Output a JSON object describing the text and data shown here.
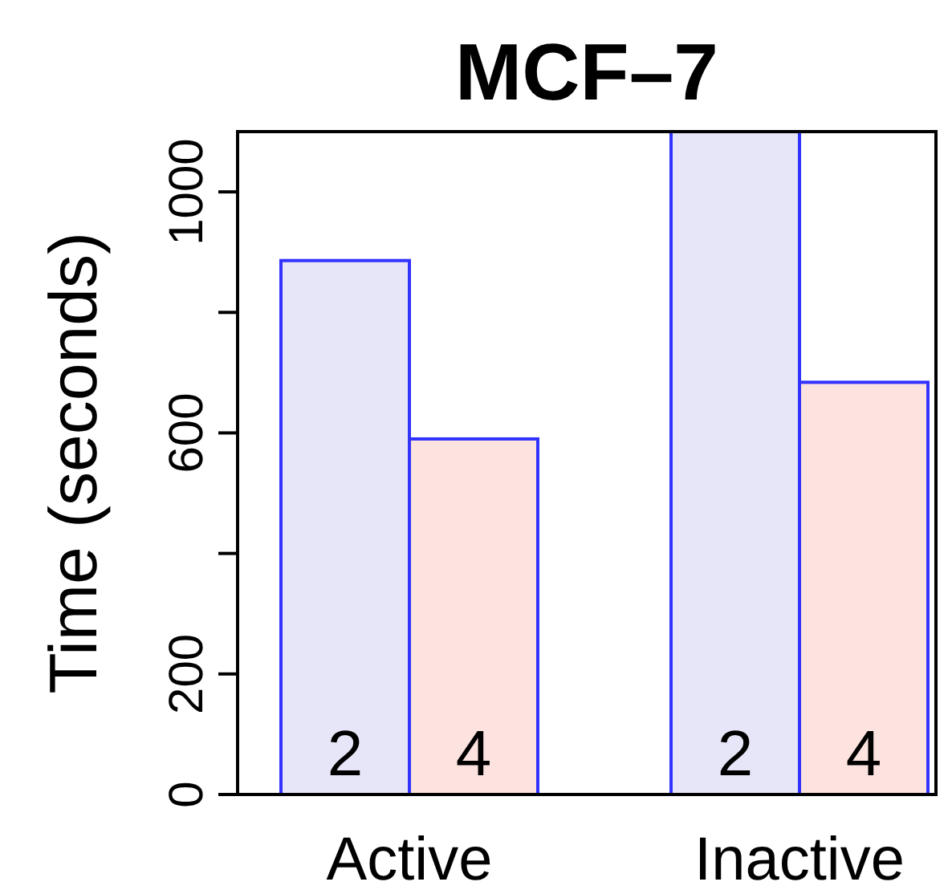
{
  "chart_data": {
    "type": "bar",
    "title": "MCF–7",
    "ylabel": "Time (seconds)",
    "categories": [
      "Active",
      "Inactive"
    ],
    "series": [
      {
        "name": "2",
        "color": "#e6e6f8",
        "values": [
          886,
          1100
        ]
      },
      {
        "name": "4",
        "color": "#fde3e0",
        "values": [
          590,
          684
        ]
      }
    ],
    "ylim": [
      0,
      1100
    ],
    "yticks": [
      0,
      200,
      {
        "value": 400,
        "label": null
      },
      600,
      {
        "value": 800,
        "label": null
      },
      1000
    ],
    "grid": false,
    "legend": false
  }
}
